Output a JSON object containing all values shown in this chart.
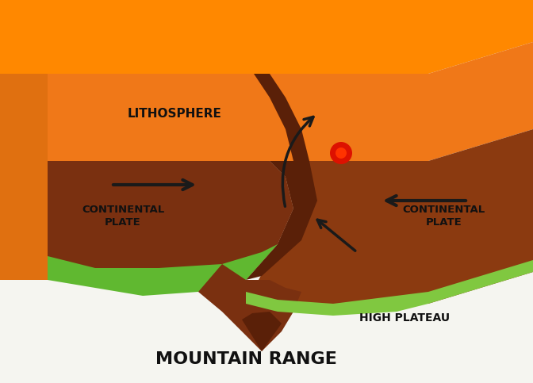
{
  "bg_color": "#ffffff",
  "litho_orange": "#f07010",
  "litho_orange_top": "#e06010",
  "litho_front_face": "#e86808",
  "litho_bottom_face": "#f09030",
  "plate_brown": "#7a3010",
  "plate_brown2": "#8b3a10",
  "plate_dark": "#5a2008",
  "green_color": "#60b830",
  "green_light": "#80c840",
  "magma_red": "#dd1100",
  "arrow_color": "#1a1a1a",
  "title": "MOUNTAIN RANGE",
  "label_high_plateau": "HIGH PLATEAU",
  "label_cont_left": "CONTINENTAL\nPLATE",
  "label_cont_right": "CONTINENTAL\nPLATE",
  "label_litho": "LITHOSPHERE"
}
